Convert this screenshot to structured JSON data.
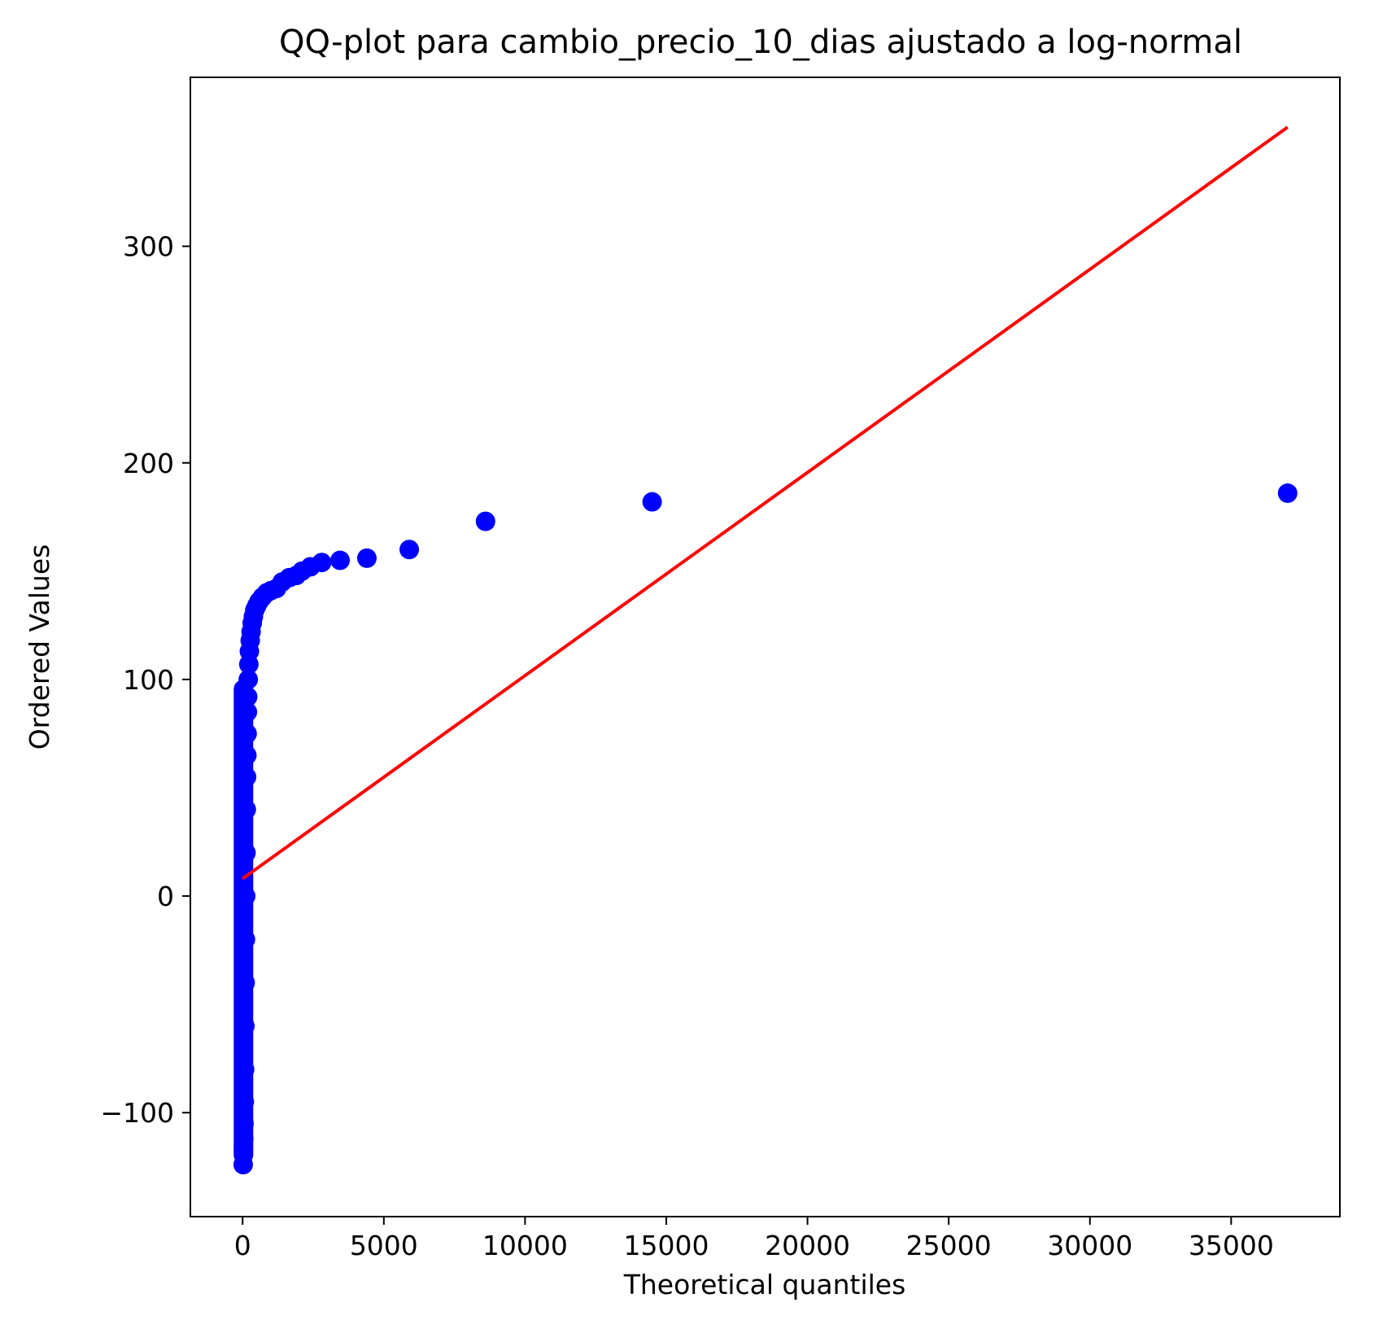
{
  "chart_data": {
    "type": "scatter",
    "title": "QQ-plot para cambio_precio_10_dias ajustado a log-normal",
    "xlabel": "Theoretical quantiles",
    "ylabel": "Ordered Values",
    "xlim": [
      -1850,
      38850
    ],
    "ylim": [
      -148,
      378
    ],
    "x_ticks": [
      0,
      5000,
      10000,
      15000,
      20000,
      25000,
      30000,
      35000
    ],
    "x_tick_labels": [
      "0",
      "5000",
      "10000",
      "15000",
      "20000",
      "25000",
      "30000",
      "35000"
    ],
    "y_ticks": [
      -100,
      0,
      100,
      200,
      300
    ],
    "y_tick_labels": [
      "−100",
      "0",
      "100",
      "200",
      "300"
    ],
    "grid": false,
    "series": [
      {
        "kind": "points",
        "color": "#0000ff",
        "points": [
          [
            20,
            -124
          ],
          [
            30,
            -116
          ],
          [
            40,
            -112
          ],
          [
            50,
            -105
          ],
          [
            60,
            -95
          ],
          [
            70,
            -80
          ],
          [
            80,
            -60
          ],
          [
            90,
            -40
          ],
          [
            100,
            -20
          ],
          [
            110,
            0
          ],
          [
            120,
            20
          ],
          [
            130,
            40
          ],
          [
            140,
            55
          ],
          [
            150,
            65
          ],
          [
            160,
            75
          ],
          [
            170,
            85
          ],
          [
            180,
            92
          ],
          [
            200,
            100
          ],
          [
            220,
            107
          ],
          [
            240,
            113
          ],
          [
            270,
            118
          ],
          [
            300,
            122
          ],
          [
            340,
            126
          ],
          [
            380,
            129
          ],
          [
            430,
            132
          ],
          [
            500,
            134
          ],
          [
            580,
            136
          ],
          [
            700,
            138
          ],
          [
            850,
            140
          ],
          [
            1000,
            141
          ],
          [
            1200,
            142
          ],
          [
            1400,
            145
          ],
          [
            1650,
            147
          ],
          [
            1900,
            148
          ],
          [
            2100,
            150
          ],
          [
            2400,
            152
          ],
          [
            2800,
            154
          ],
          [
            3450,
            155
          ],
          [
            4400,
            156
          ],
          [
            5900,
            160
          ],
          [
            8600,
            173
          ],
          [
            14500,
            182
          ],
          [
            37000,
            186
          ]
        ]
      },
      {
        "kind": "line",
        "color": "#ff0000",
        "points": [
          [
            0,
            8
          ],
          [
            37000,
            355
          ]
        ]
      }
    ]
  }
}
